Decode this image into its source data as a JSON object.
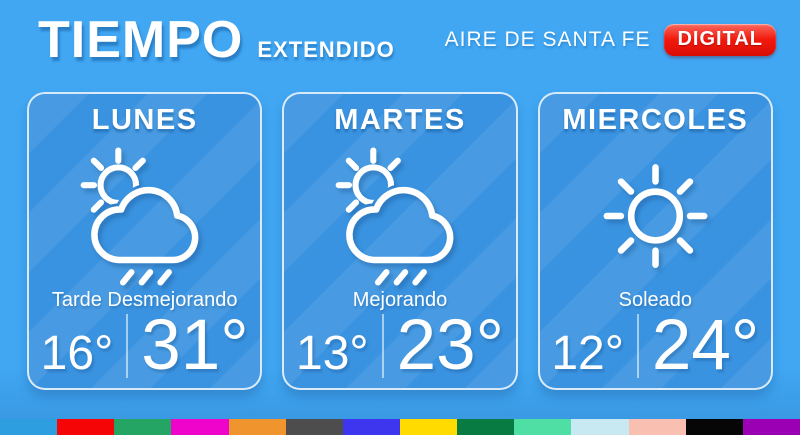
{
  "header": {
    "title": "TIEMPO",
    "subtitle": "EXTENDIDO",
    "brand": "AIRE DE SANTA FE",
    "badge": "DIGITAL"
  },
  "cards": [
    {
      "day": "LUNES",
      "icon": "sun-cloud-rain-icon",
      "condition": "Tarde Desmejorando",
      "temp_min": "16°",
      "temp_max": "31°"
    },
    {
      "day": "MARTES",
      "icon": "sun-cloud-rain-icon",
      "condition": "Mejorando",
      "temp_min": "13°",
      "temp_max": "23°"
    },
    {
      "day": "MIERCOLES",
      "icon": "sun-icon",
      "condition": "Soleado",
      "temp_min": "12°",
      "temp_max": "24°"
    }
  ],
  "colors": {
    "background": "#41A7F3",
    "card": "#3A93E0",
    "badge_red": "#E8190F",
    "text": "#FFFFFF"
  },
  "footer": {
    "stripe_colors": [
      "#2D9FE0",
      "#F50505",
      "#25A564",
      "#EF04CB",
      "#F0942D",
      "#4D4D4D",
      "#3D36EE",
      "#FFDB00",
      "#077B41",
      "#4FDFA4",
      "#C8E9F1",
      "#F9BFB1",
      "#060606",
      "#9C00B4"
    ]
  }
}
